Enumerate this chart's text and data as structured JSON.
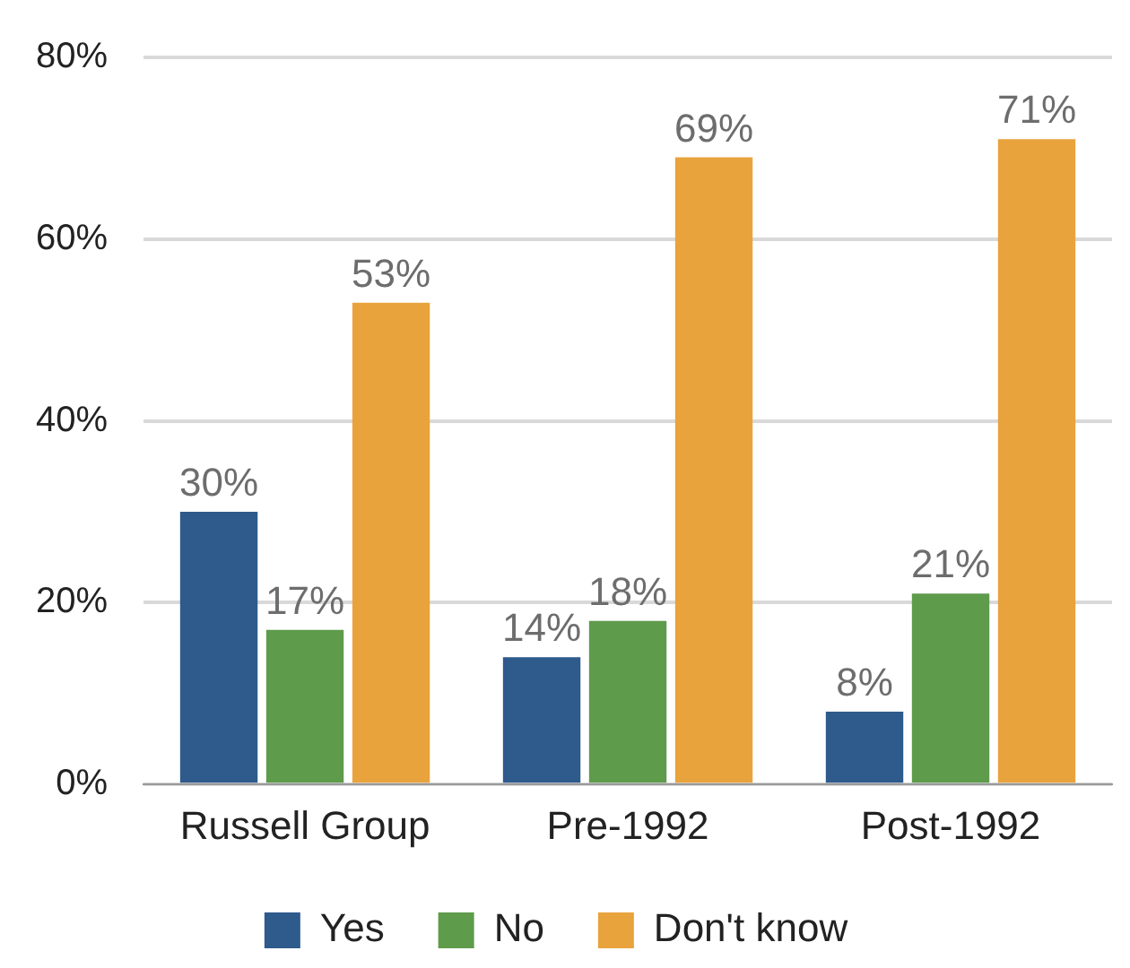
{
  "chart_data": {
    "type": "bar",
    "categories": [
      "Russell Group",
      "Pre-1992",
      "Post-1992"
    ],
    "series": [
      {
        "name": "Yes",
        "color": "#2e5a8c",
        "values": [
          30,
          14,
          8
        ],
        "value_labels": [
          "30%",
          "14%",
          "8%"
        ]
      },
      {
        "name": "No",
        "color": "#5e9b4b",
        "values": [
          17,
          18,
          21
        ],
        "value_labels": [
          "17%",
          "18%",
          "21%"
        ]
      },
      {
        "name": "Don't know",
        "color": "#e8a33d",
        "values": [
          53,
          69,
          71
        ],
        "value_labels": [
          "53%",
          "69%",
          "71%"
        ]
      }
    ],
    "ylim": [
      0,
      80
    ],
    "yticks": [
      {
        "value": 0,
        "label": "0%"
      },
      {
        "value": 20,
        "label": "20%"
      },
      {
        "value": 40,
        "label": "40%"
      },
      {
        "value": 60,
        "label": "60%"
      },
      {
        "value": 80,
        "label": "80%"
      }
    ],
    "grid": "y",
    "legend": "bottom"
  }
}
